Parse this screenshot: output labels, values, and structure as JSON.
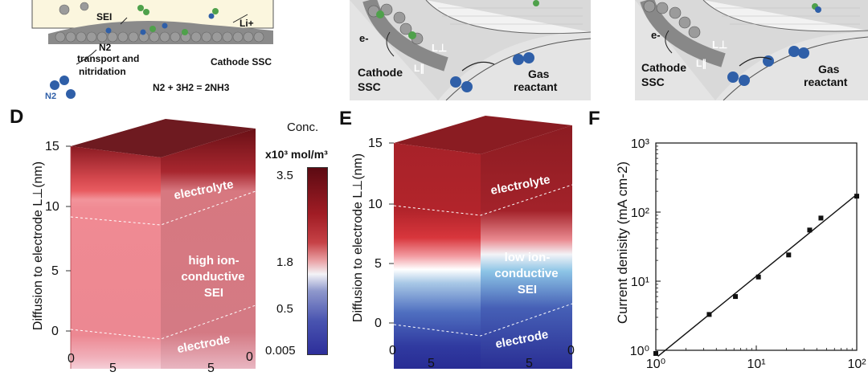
{
  "top": {
    "left": {
      "sei": "SEI",
      "li": "Li+",
      "n2": "N2",
      "n2_blue": "N2",
      "transport": "transport and",
      "nitridation": "nitridation",
      "cathode": "Cathode SSC",
      "equation": "N2 + 3H2 = 2NH3"
    },
    "mid": {
      "e": "e-",
      "cathode1": "Cathode",
      "cathode2": "SSC",
      "lperp": "L⊥",
      "lpar": "L∥",
      "gas1": "Gas",
      "gas2": "reactant"
    },
    "right": {
      "e": "e-",
      "cathode1": "Cathode",
      "cathode2": "SSC",
      "lperp": "L⊥",
      "lpar": "L∥",
      "gas1": "Gas",
      "gas2": "reactant"
    }
  },
  "panels": {
    "D": {
      "letter": "D",
      "ylabel": "Diffusion to electrode L⊥(nm)",
      "yticks": [
        "15",
        "10",
        "5",
        "0"
      ],
      "xticks": [
        "0",
        "5",
        "5",
        "0"
      ],
      "top_label": "electrolyte",
      "mid_label": [
        "high ion-",
        "conductive",
        "SEI"
      ],
      "bottom_label": "electrode"
    },
    "E": {
      "letter": "E",
      "ylabel": "Diffusion to electrode L⊥(nm)",
      "yticks": [
        "15",
        "10",
        "5",
        "0"
      ],
      "xticks": [
        "0",
        "5",
        "5",
        "0"
      ],
      "top_label": "electrolyte",
      "mid_label": [
        "low ion-",
        "conductive",
        "SEI"
      ],
      "bottom_label": "electrode"
    }
  },
  "colorbar": {
    "title": "Conc.",
    "unit": "x10³ mol/m³",
    "ticks": [
      "3.5",
      "1.8",
      "0.5",
      "0.005"
    ]
  },
  "chart_data": {
    "type": "scatter",
    "panel": "F",
    "ylabel": "Current denisity (mA cm-2)",
    "xscale": "log",
    "yscale": "log",
    "xlim": [
      1,
      100
    ],
    "ylim": [
      1,
      1000
    ],
    "yticks": [
      "10³",
      "10²",
      "10¹",
      "10⁰"
    ],
    "xticks": [
      "10⁰",
      "10¹",
      "10²"
    ],
    "x": [
      1.0,
      3.4,
      6.2,
      10.5,
      21.0,
      34.0,
      44.0,
      100.0
    ],
    "y": [
      0.9,
      3.3,
      6.0,
      11.5,
      24.0,
      55.0,
      82.0,
      170.0
    ],
    "fit": {
      "x": [
        1.05,
        100
      ],
      "y": [
        0.82,
        180
      ]
    },
    "colors": {
      "marker": "#111111",
      "line": "#111111"
    }
  }
}
